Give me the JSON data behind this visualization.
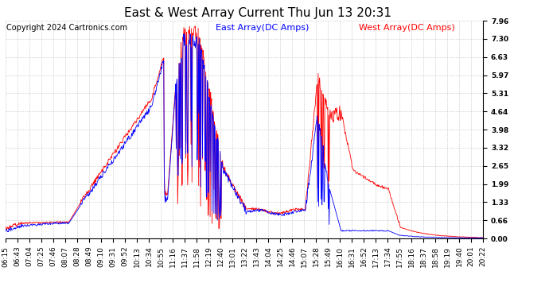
{
  "title": "East & West Array Current Thu Jun 13 20:31",
  "copyright": "Copyright 2024 Cartronics.com",
  "legend_east": "East Array(DC Amps)",
  "legend_west": "West Array(DC Amps)",
  "east_color": "blue",
  "west_color": "red",
  "background_color": "#ffffff",
  "grid_color": "#c8c8c8",
  "ymin": 0.0,
  "ymax": 7.96,
  "yticks": [
    0.0,
    0.66,
    1.33,
    1.99,
    2.65,
    3.32,
    3.98,
    4.64,
    5.31,
    5.97,
    6.63,
    7.3,
    7.96
  ],
  "xtick_labels": [
    "06:15",
    "06:43",
    "07:04",
    "07:25",
    "07:46",
    "08:07",
    "08:28",
    "08:49",
    "09:10",
    "09:31",
    "09:52",
    "10:13",
    "10:34",
    "10:55",
    "11:16",
    "11:37",
    "11:58",
    "12:19",
    "12:40",
    "13:01",
    "13:22",
    "13:43",
    "14:04",
    "14:25",
    "14:46",
    "15:07",
    "15:28",
    "15:49",
    "16:10",
    "16:31",
    "16:52",
    "17:13",
    "17:34",
    "17:55",
    "18:16",
    "18:37",
    "18:58",
    "19:19",
    "19:40",
    "20:01",
    "20:22"
  ],
  "title_fontsize": 11,
  "copyright_fontsize": 7,
  "legend_fontsize": 8,
  "tick_fontsize": 6.5
}
